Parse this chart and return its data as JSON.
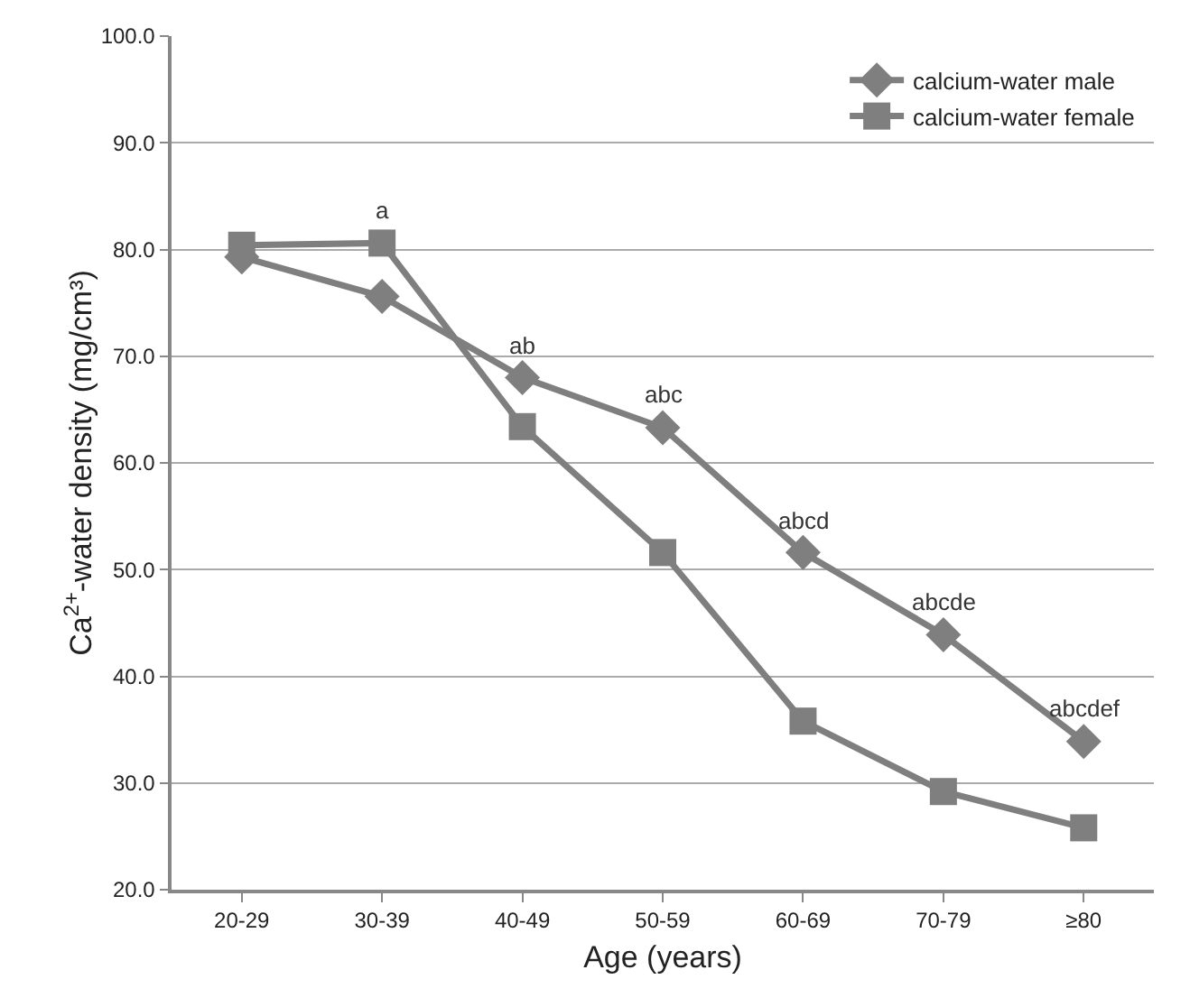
{
  "chart_data": {
    "type": "line",
    "xlabel": "Age (years)",
    "ylabel": "Ca$^{2+}$-water density (mg/cm³)",
    "categories": [
      "20-29",
      "30-39",
      "40-49",
      "50-59",
      "60-69",
      "70-79",
      "≥80"
    ],
    "series": [
      {
        "name": "calcium-water male",
        "color": "#7f7f7f",
        "marker": "diamond",
        "values": [
          79.3,
          75.6,
          68.0,
          63.3,
          51.6,
          43.9,
          33.9
        ]
      },
      {
        "name": "calcium-water female",
        "color": "#7f7f7f",
        "marker": "square",
        "values": [
          80.4,
          80.6,
          63.4,
          51.6,
          35.8,
          29.2,
          25.8
        ]
      }
    ],
    "ylim": [
      20,
      100
    ],
    "yticks": [
      {
        "value": 20,
        "label": "20.0"
      },
      {
        "value": 30,
        "label": "30.0"
      },
      {
        "value": 40,
        "label": "40.0"
      },
      {
        "value": 50,
        "label": "50.0"
      },
      {
        "value": 60,
        "label": "60.0"
      },
      {
        "value": 70,
        "label": "70.0"
      },
      {
        "value": 80,
        "label": "80.0"
      },
      {
        "value": 90,
        "label": "90.0"
      },
      {
        "value": 100,
        "label": "100.0"
      }
    ],
    "grid": "y",
    "legend": "top right",
    "line_style": "solid",
    "annotations": [
      {
        "text": "a",
        "x": "30-39",
        "y": 80.6
      },
      {
        "text": "ab",
        "x": "40-49",
        "y": 68.0
      },
      {
        "text": "abc",
        "x": "50-59",
        "y": 63.3
      },
      {
        "text": "abcd",
        "x": "60-69",
        "y": 51.6
      },
      {
        "text": "abcde",
        "x": "70-79",
        "y": 43.9
      },
      {
        "text": "abcdef",
        "x": "≥80",
        "y": 33.9
      }
    ]
  }
}
